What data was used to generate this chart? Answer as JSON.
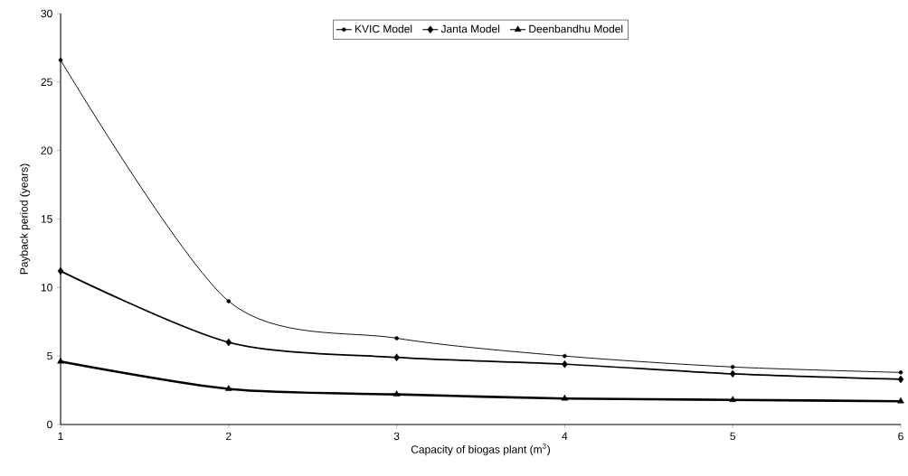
{
  "chart_data": {
    "type": "line",
    "xlabel": "Capacity of biogas plant (m$^{3}$)",
    "ylabel": "Payback period (years)",
    "x": [
      1,
      2,
      3,
      4,
      5,
      6
    ],
    "series": [
      {
        "name": "KVIC Model",
        "color": "#000000",
        "marker": "circle",
        "values": [
          26.6,
          9.0,
          6.3,
          5.0,
          4.2,
          3.8
        ]
      },
      {
        "name": "Janta Model",
        "color": "#000000",
        "marker": "diamond",
        "values": [
          11.2,
          6.0,
          4.9,
          4.4,
          3.7,
          3.3
        ]
      },
      {
        "name": "Deenbandhu Model",
        "color": "#000000",
        "marker": "triangle",
        "values": [
          4.6,
          2.6,
          2.2,
          1.9,
          1.8,
          1.7
        ]
      }
    ],
    "xlim": [
      1,
      6
    ],
    "ylim": [
      0,
      30
    ],
    "xticks": [
      1,
      2,
      3,
      4,
      5,
      6
    ],
    "yticks": [
      0,
      5,
      10,
      15,
      20,
      25,
      30
    ],
    "legend": "top",
    "grid": false,
    "line_style": "solid"
  }
}
